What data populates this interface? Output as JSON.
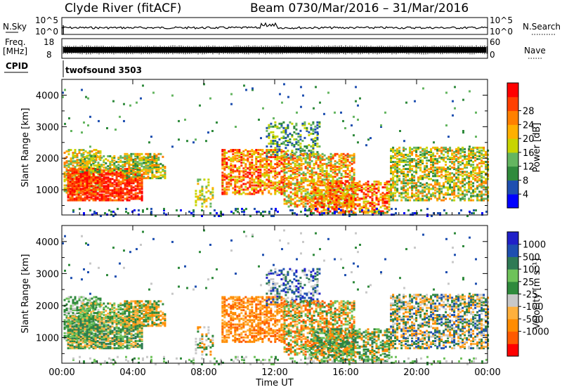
{
  "header": {
    "station": "Clyde River (fitACF)",
    "beam": "Beam 07",
    "dates": "30/Mar/2016 – 31/Mar/2016"
  },
  "top_panels": {
    "nsky_label": "N.Sky",
    "nsky_max": "10^5",
    "nsky_min": "10^0",
    "nsearch_label": "N.Search",
    "nsearch_max": "10^5",
    "nsearch_min": "10^0",
    "freq_label": "Freq.",
    "freq_unit": "[MHz]",
    "freq_max": "18",
    "freq_min": "8",
    "nave_label": "Nave",
    "nave_max": "60",
    "nave_min": "0",
    "cpid_label": "CPID",
    "cpid_value": "twofsound 3503"
  },
  "colors": {
    "power_scale": [
      "#0000ff",
      "#1e4fb0",
      "#2f8a3c",
      "#64b560",
      "#c8d400",
      "#ffb000",
      "#ff8000",
      "#ff4000",
      "#ff0000"
    ],
    "velocity_scale": [
      "#ff0000",
      "#ff5a00",
      "#ff8c00",
      "#ffb03c",
      "#c8c8c8",
      "#2f8a3c",
      "#6ec25a",
      "#2f7a55",
      "#1e4fb0",
      "#2020c8"
    ]
  },
  "chart_data": [
    {
      "type": "heatmap",
      "title": "Power",
      "ylabel": "Slant Range [km]",
      "xlabel": "Time UT",
      "x_ticks": [
        "00:00",
        "04:00",
        "08:00",
        "12:00",
        "16:00",
        "20:00",
        "00:00"
      ],
      "y_ticks": [
        1000,
        2000,
        3000,
        4000
      ],
      "ylim": [
        200,
        4500
      ],
      "xlim_hours": [
        0,
        24
      ],
      "colorbar_label": "Power [dB]",
      "colorbar_ticks": [
        4,
        8,
        12,
        16,
        20,
        24,
        28
      ]
    },
    {
      "type": "heatmap",
      "title": "Velocity",
      "ylabel": "Slant Range [km]",
      "xlabel": "Time UT",
      "x_ticks": [
        "00:00",
        "04:00",
        "08:00",
        "12:00",
        "16:00",
        "20:00",
        "00:00"
      ],
      "y_ticks": [
        1000,
        2000,
        3000,
        4000
      ],
      "ylim": [
        200,
        4500
      ],
      "xlim_hours": [
        0,
        24
      ],
      "colorbar_label": "Velocity [m s⁻¹]",
      "colorbar_ticks": [
        1000,
        500,
        100,
        25,
        -25,
        -100,
        -500,
        -1000
      ]
    }
  ]
}
